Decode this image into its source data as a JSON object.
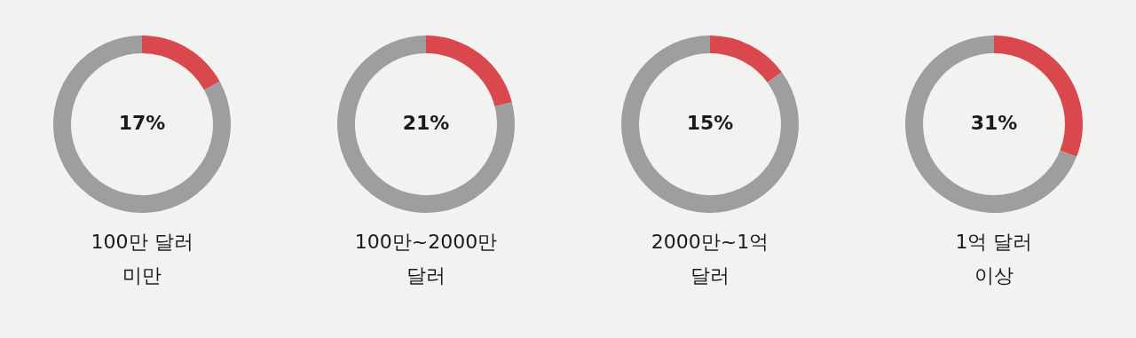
{
  "chart_data": [
    {
      "type": "donut",
      "title": "100만 달러\n미만",
      "categories": [
        null,
        null
      ],
      "values": [
        17,
        83
      ],
      "colors": [
        "#d9484c",
        "#9e9e9e"
      ],
      "annotations": [
        "17%"
      ]
    },
    {
      "type": "donut",
      "title": "100만~2000만\n달러",
      "categories": [
        null,
        null
      ],
      "values": [
        21,
        79
      ],
      "colors": [
        "#d9484c",
        "#9e9e9e"
      ],
      "annotations": [
        "21%"
      ]
    },
    {
      "type": "donut",
      "title": "2000만~1억\n달러",
      "categories": [
        null,
        null
      ],
      "values": [
        15,
        85
      ],
      "colors": [
        "#d9484c",
        "#9e9e9e"
      ],
      "annotations": [
        "15%"
      ]
    },
    {
      "type": "donut",
      "title": "1억 달러\n이상",
      "categories": [
        null,
        null
      ],
      "values": [
        31,
        69
      ],
      "colors": [
        "#d9484c",
        "#9e9e9e"
      ],
      "annotations": [
        "31%"
      ]
    }
  ]
}
